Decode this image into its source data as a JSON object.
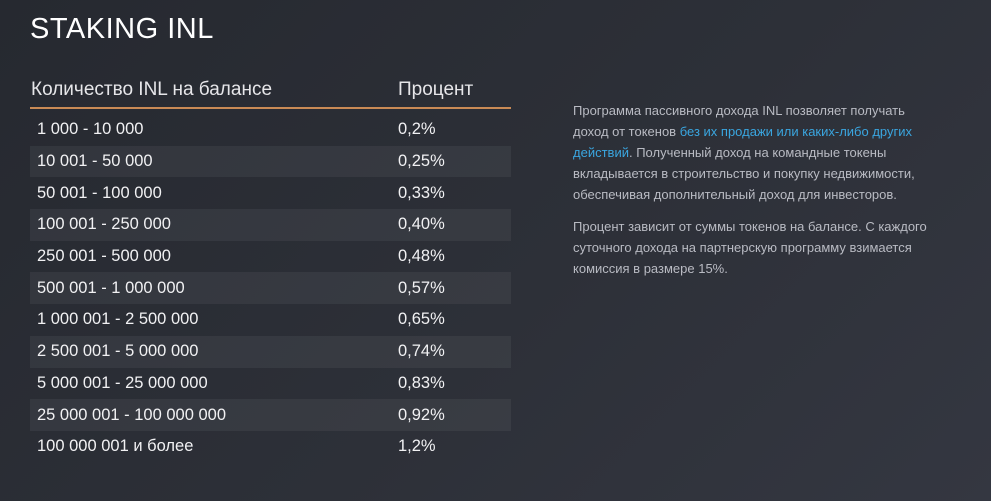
{
  "page": {
    "title": "STAKING INL"
  },
  "table": {
    "headers": {
      "amount": "Количество INL на балансе",
      "percent": "Процент"
    },
    "rows": [
      {
        "amount": "1 000 - 10 000",
        "percent": "0,2%"
      },
      {
        "amount": "10 001 - 50 000",
        "percent": "0,25%"
      },
      {
        "amount": "50 001 - 100 000",
        "percent": "0,33%"
      },
      {
        "amount": "100 001 - 250 000",
        "percent": "0,40%"
      },
      {
        "amount": "250 001 - 500 000",
        "percent": "0,48%"
      },
      {
        "amount": "500 001 - 1 000 000",
        "percent": "0,57%"
      },
      {
        "amount": "1 000 001 - 2 500 000",
        "percent": "0,65%"
      },
      {
        "amount": "2 500 001 - 5 000 000",
        "percent": "0,74%"
      },
      {
        "amount": "5 000 001 - 25 000 000",
        "percent": "0,83%"
      },
      {
        "amount": "25 000 001 - 100 000 000",
        "percent": "0,92%"
      },
      {
        "amount": "100 000 001 и более",
        "percent": "1,2%"
      }
    ]
  },
  "description": {
    "p1_before": "Программа пассивного дохода INL позволяет получать доход от токенов ",
    "p1_link": "без их продажи или каких-либо других действий",
    "p1_after": ". Полученный доход на командные токены вкладывается в строительство и покупку недвижимости, обеспечивая дополнительный доход для инвесторов.",
    "p2": "Процент зависит от суммы токенов на балансе. С каждого суточного дохода на партнерскую программу взимается комиссия в размере 15%."
  },
  "colors": {
    "accent_line": "#c98a55",
    "link": "#3aa6e0",
    "background": "#2c2f37"
  }
}
